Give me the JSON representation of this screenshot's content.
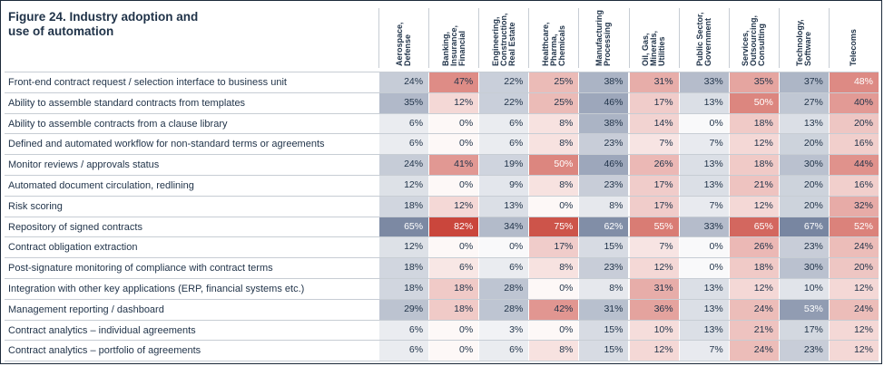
{
  "title_line1": "Figure 24. Industry adoption and",
  "title_line2": "use of automation",
  "chart_data": {
    "type": "table",
    "title": "Figure 24. Industry adoption and use of automation",
    "columns": [
      [
        "Aerospace,",
        "Defense"
      ],
      [
        "Banking,",
        "Insurance,",
        "Financial"
      ],
      [
        "Engineering,",
        "Construction,",
        "Real Estate"
      ],
      [
        "Healthcare,",
        "Pharma,",
        "Chemicals"
      ],
      [
        "Manufacturing",
        "Processing"
      ],
      [
        "Oil, Gas,",
        "Minerals,",
        "Utilities"
      ],
      [
        "Public Sector,",
        "Government"
      ],
      [
        "Services,",
        "Outsourcing,",
        "Consulting"
      ],
      [
        "Technology,",
        "Software"
      ],
      [
        "Telecoms"
      ]
    ],
    "rows": [
      {
        "label": "Front-end contract request / selection interface to business unit",
        "values": [
          24,
          47,
          22,
          25,
          38,
          31,
          33,
          35,
          37,
          48
        ]
      },
      {
        "label": "Ability to assemble standard contracts from templates",
        "values": [
          35,
          12,
          22,
          25,
          46,
          17,
          13,
          50,
          27,
          40
        ]
      },
      {
        "label": "Ability to assemble contracts from a clause library",
        "values": [
          6,
          0,
          6,
          8,
          38,
          14,
          0,
          18,
          13,
          20
        ]
      },
      {
        "label": "Defined and automated workflow for non-standard terms or agreements",
        "values": [
          6,
          0,
          6,
          8,
          23,
          7,
          7,
          12,
          20,
          16
        ]
      },
      {
        "label": "Monitor reviews / approvals status",
        "values": [
          24,
          41,
          19,
          50,
          46,
          26,
          13,
          18,
          30,
          44
        ]
      },
      {
        "label": "Automated document circulation, redlining",
        "values": [
          12,
          0,
          9,
          8,
          23,
          17,
          13,
          21,
          20,
          16
        ]
      },
      {
        "label": "Risk scoring",
        "values": [
          18,
          12,
          13,
          0,
          8,
          17,
          7,
          12,
          20,
          32
        ]
      },
      {
        "label": "Repository of signed contracts",
        "values": [
          65,
          82,
          34,
          75,
          62,
          55,
          33,
          65,
          67,
          52
        ]
      },
      {
        "label": "Contract obligation extraction",
        "values": [
          12,
          0,
          0,
          17,
          15,
          7,
          0,
          26,
          23,
          24
        ]
      },
      {
        "label": "Post-signature monitoring of compliance with contract terms",
        "values": [
          18,
          6,
          6,
          8,
          23,
          12,
          0,
          18,
          30,
          20
        ]
      },
      {
        "label": "Integration with other key applications (ERP, financial systems etc.)",
        "values": [
          18,
          18,
          28,
          0,
          8,
          31,
          13,
          12,
          10,
          12
        ]
      },
      {
        "label": "Management reporting / dashboard",
        "values": [
          29,
          18,
          28,
          42,
          31,
          36,
          13,
          24,
          53,
          24
        ]
      },
      {
        "label": "Contract analytics – individual agreements",
        "values": [
          6,
          0,
          3,
          0,
          15,
          10,
          13,
          21,
          17,
          12
        ]
      },
      {
        "label": "Contract analytics – portfolio of agreements",
        "values": [
          6,
          0,
          6,
          8,
          15,
          12,
          7,
          24,
          23,
          12
        ]
      }
    ],
    "value_suffix": "%",
    "column_palettes": [
      "blue",
      "red",
      "blue",
      "red",
      "blue",
      "red",
      "blue",
      "red",
      "blue",
      "red"
    ],
    "colors": {
      "blue_dark": "#5d6e8e",
      "red_dark": "#c9443a",
      "text": "#1f3248"
    }
  }
}
